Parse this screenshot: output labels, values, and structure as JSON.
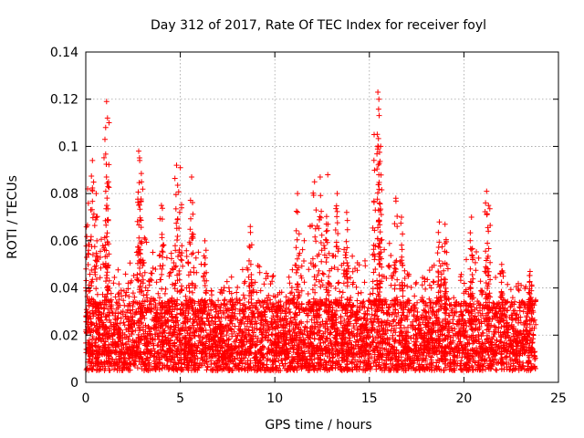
{
  "chart_data": {
    "type": "scatter",
    "title": "Day 312 of 2017, Rate Of TEC Index for receiver foyl",
    "xlabel": "GPS time / hours",
    "ylabel": "ROTI / TECUs",
    "xlim": [
      0,
      25
    ],
    "ylim": [
      0,
      0.14
    ],
    "grid": true,
    "marker": "+",
    "color": "#ff0000",
    "x_ticks": [
      0,
      5,
      10,
      15,
      20,
      25
    ],
    "x_tick_labels": [
      "0",
      "5",
      "10",
      "15",
      "20",
      "25"
    ],
    "y_ticks": [
      0,
      0.02,
      0.04,
      0.06,
      0.08,
      0.1,
      0.12,
      0.14
    ],
    "y_tick_labels": [
      "0",
      "0.02",
      "0.04",
      "0.06",
      "0.08",
      "0.1",
      "0.12",
      "0.14"
    ],
    "series": [
      {
        "name": "ROTI",
        "x_range": [
          0,
          23.8
        ],
        "baseline_band": [
          0.005,
          0.035
        ],
        "typical_envelope": [
          [
            0.0,
            0.06
          ],
          [
            0.5,
            0.055
          ],
          [
            1.0,
            0.07
          ],
          [
            1.5,
            0.05
          ],
          [
            2.0,
            0.05
          ],
          [
            2.5,
            0.055
          ],
          [
            3.0,
            0.065
          ],
          [
            3.5,
            0.055
          ],
          [
            4.0,
            0.06
          ],
          [
            4.5,
            0.055
          ],
          [
            5.0,
            0.06
          ],
          [
            5.5,
            0.06
          ],
          [
            6.0,
            0.055
          ],
          [
            6.5,
            0.04
          ],
          [
            7.0,
            0.04
          ],
          [
            7.5,
            0.045
          ],
          [
            8.0,
            0.05
          ],
          [
            8.5,
            0.055
          ],
          [
            9.0,
            0.05
          ],
          [
            9.5,
            0.05
          ],
          [
            10.0,
            0.045
          ],
          [
            10.5,
            0.04
          ],
          [
            11.0,
            0.05
          ],
          [
            11.5,
            0.06
          ],
          [
            12.0,
            0.07
          ],
          [
            12.5,
            0.07
          ],
          [
            13.0,
            0.065
          ],
          [
            13.5,
            0.06
          ],
          [
            14.0,
            0.055
          ],
          [
            14.5,
            0.05
          ],
          [
            15.0,
            0.06
          ],
          [
            15.5,
            0.065
          ],
          [
            16.0,
            0.06
          ],
          [
            16.5,
            0.055
          ],
          [
            17.0,
            0.05
          ],
          [
            17.5,
            0.045
          ],
          [
            18.0,
            0.045
          ],
          [
            18.5,
            0.055
          ],
          [
            19.0,
            0.06
          ],
          [
            19.5,
            0.045
          ],
          [
            20.0,
            0.05
          ],
          [
            20.5,
            0.06
          ],
          [
            21.0,
            0.065
          ],
          [
            21.5,
            0.055
          ],
          [
            22.0,
            0.045
          ],
          [
            22.5,
            0.04
          ],
          [
            23.0,
            0.045
          ],
          [
            23.5,
            0.045
          ],
          [
            23.8,
            0.045
          ]
        ],
        "peaks": [
          {
            "x": 0.1,
            "y": 0.082
          },
          {
            "x": 0.35,
            "y": 0.094
          },
          {
            "x": 0.55,
            "y": 0.08
          },
          {
            "x": 1.1,
            "y": 0.119
          },
          {
            "x": 1.15,
            "y": 0.112
          },
          {
            "x": 1.05,
            "y": 0.108
          },
          {
            "x": 2.8,
            "y": 0.098
          },
          {
            "x": 2.85,
            "y": 0.094
          },
          {
            "x": 2.95,
            "y": 0.085
          },
          {
            "x": 4.0,
            "y": 0.075
          },
          {
            "x": 4.8,
            "y": 0.092
          },
          {
            "x": 5.0,
            "y": 0.091
          },
          {
            "x": 5.6,
            "y": 0.087
          },
          {
            "x": 6.3,
            "y": 0.06
          },
          {
            "x": 8.7,
            "y": 0.066
          },
          {
            "x": 11.2,
            "y": 0.08
          },
          {
            "x": 12.1,
            "y": 0.085
          },
          {
            "x": 12.4,
            "y": 0.087
          },
          {
            "x": 12.8,
            "y": 0.088
          },
          {
            "x": 13.3,
            "y": 0.08
          },
          {
            "x": 13.8,
            "y": 0.072
          },
          {
            "x": 15.25,
            "y": 0.105
          },
          {
            "x": 15.45,
            "y": 0.123
          },
          {
            "x": 15.5,
            "y": 0.12
          },
          {
            "x": 15.6,
            "y": 0.1
          },
          {
            "x": 15.5,
            "y": 0.088
          },
          {
            "x": 16.4,
            "y": 0.078
          },
          {
            "x": 16.7,
            "y": 0.07
          },
          {
            "x": 18.7,
            "y": 0.068
          },
          {
            "x": 19.0,
            "y": 0.067
          },
          {
            "x": 20.4,
            "y": 0.07
          },
          {
            "x": 21.2,
            "y": 0.081
          },
          {
            "x": 21.3,
            "y": 0.075
          },
          {
            "x": 22.0,
            "y": 0.05
          },
          {
            "x": 23.5,
            "y": 0.047
          }
        ]
      }
    ]
  }
}
